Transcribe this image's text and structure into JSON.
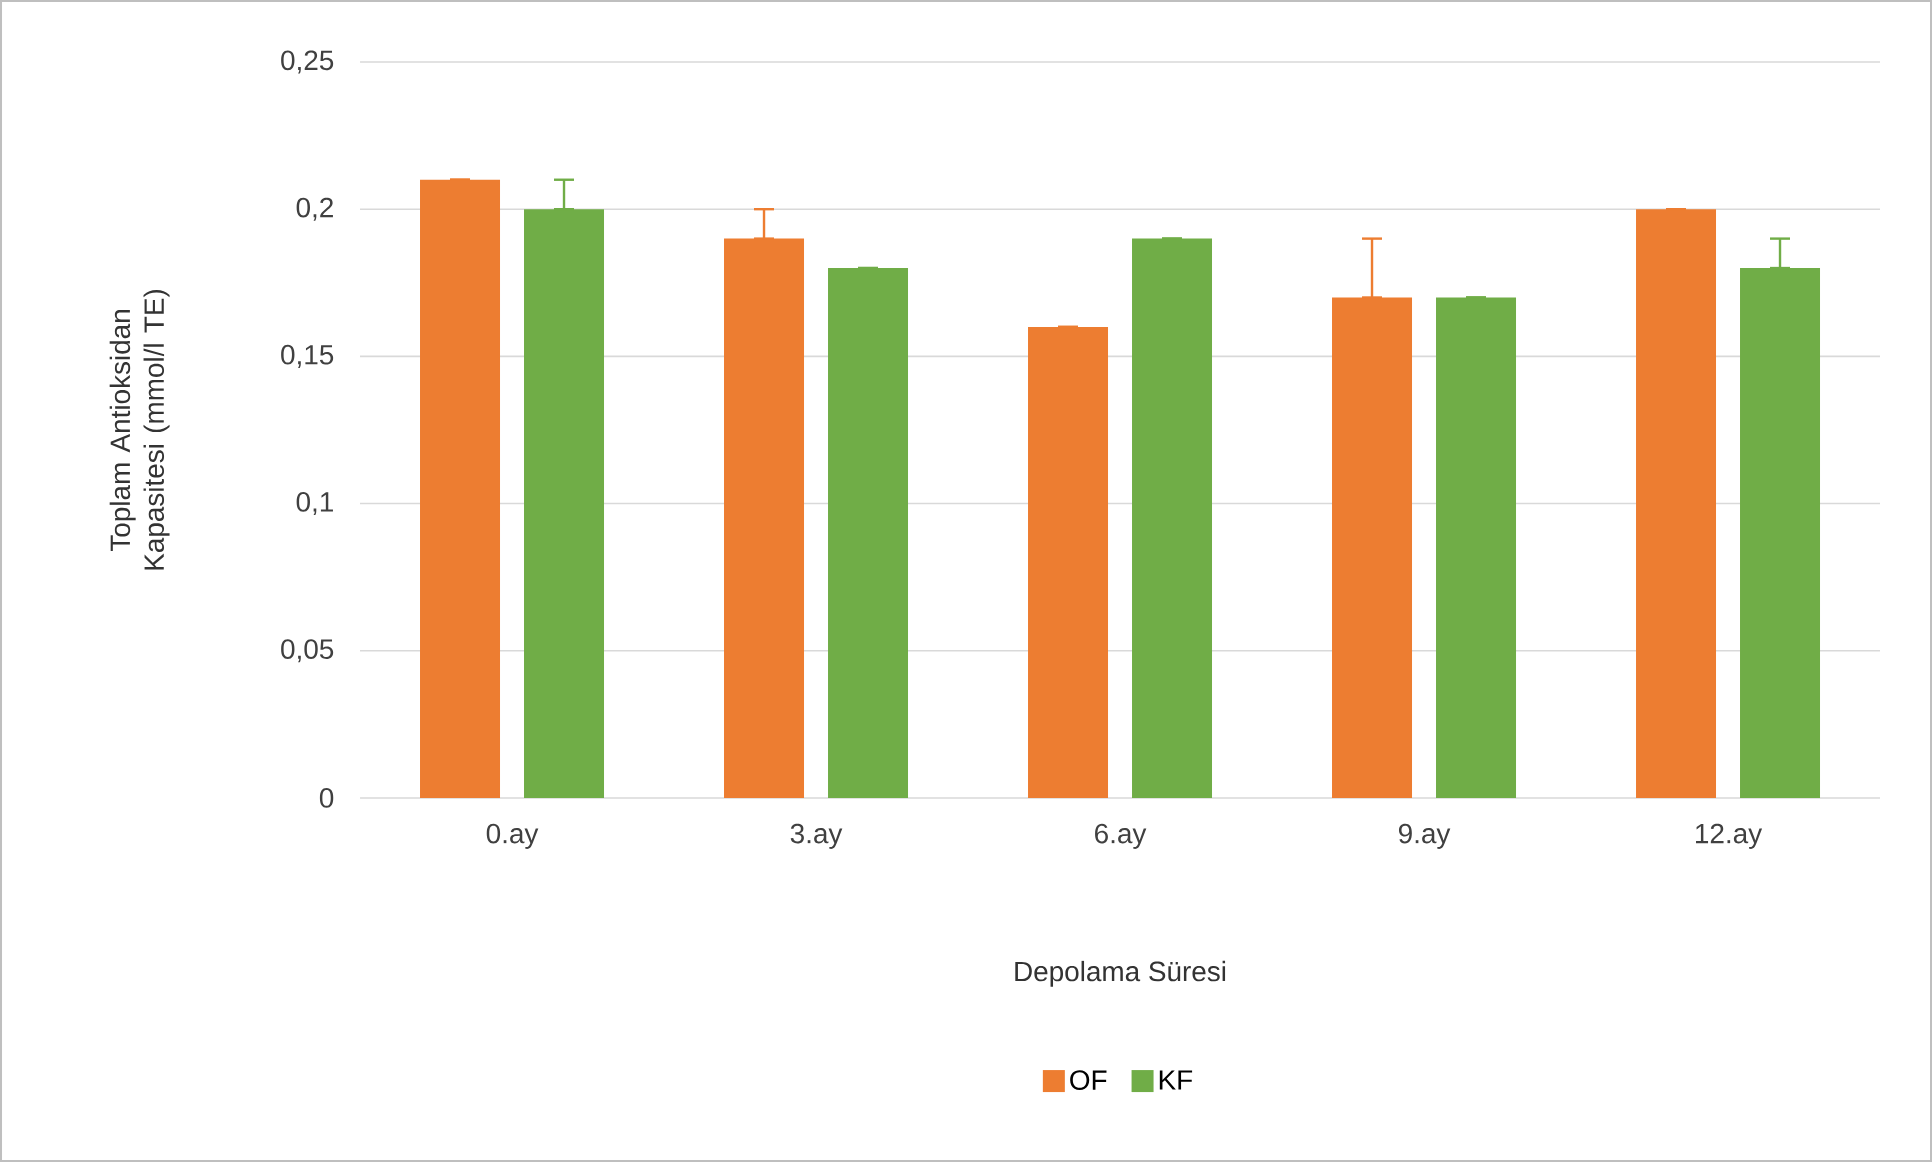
{
  "chart_data": {
    "type": "bar",
    "xlabel": "Depolama Süresi",
    "ylabel": "Toplam Antioksidan Kapasitesi (mmol/l TE)",
    "categories": [
      "0.ay",
      "3.ay",
      "6.ay",
      "9.ay",
      "12.ay"
    ],
    "series": [
      {
        "name": "OF",
        "color": "#ed7d31",
        "values": [
          0.21,
          0.19,
          0.16,
          0.17,
          0.2
        ],
        "errors": [
          [
            0.21,
            0.21
          ],
          [
            0.19,
            0.2
          ],
          [
            0.16,
            0.16
          ],
          [
            0.17,
            0.19
          ],
          [
            0.2,
            0.2
          ]
        ]
      },
      {
        "name": "KF",
        "color": "#70ad47",
        "values": [
          0.2,
          0.18,
          0.19,
          0.17,
          0.18
        ],
        "errors": [
          [
            0.2,
            0.21
          ],
          [
            0.18,
            0.18
          ],
          [
            0.19,
            0.19
          ],
          [
            0.17,
            0.17
          ],
          [
            0.18,
            0.19
          ]
        ]
      }
    ],
    "ylim": [
      0,
      0.25
    ],
    "yticks": [
      {
        "value": 0,
        "label": "0"
      },
      {
        "value": 0.05,
        "label": "0,05"
      },
      {
        "value": 0.1,
        "label": "0,1"
      },
      {
        "value": 0.15,
        "label": "0,15"
      },
      {
        "value": 0.2,
        "label": "0,2"
      },
      {
        "value": 0.25,
        "label": "0,25"
      }
    ],
    "grid": "y",
    "legend": "bottom"
  }
}
